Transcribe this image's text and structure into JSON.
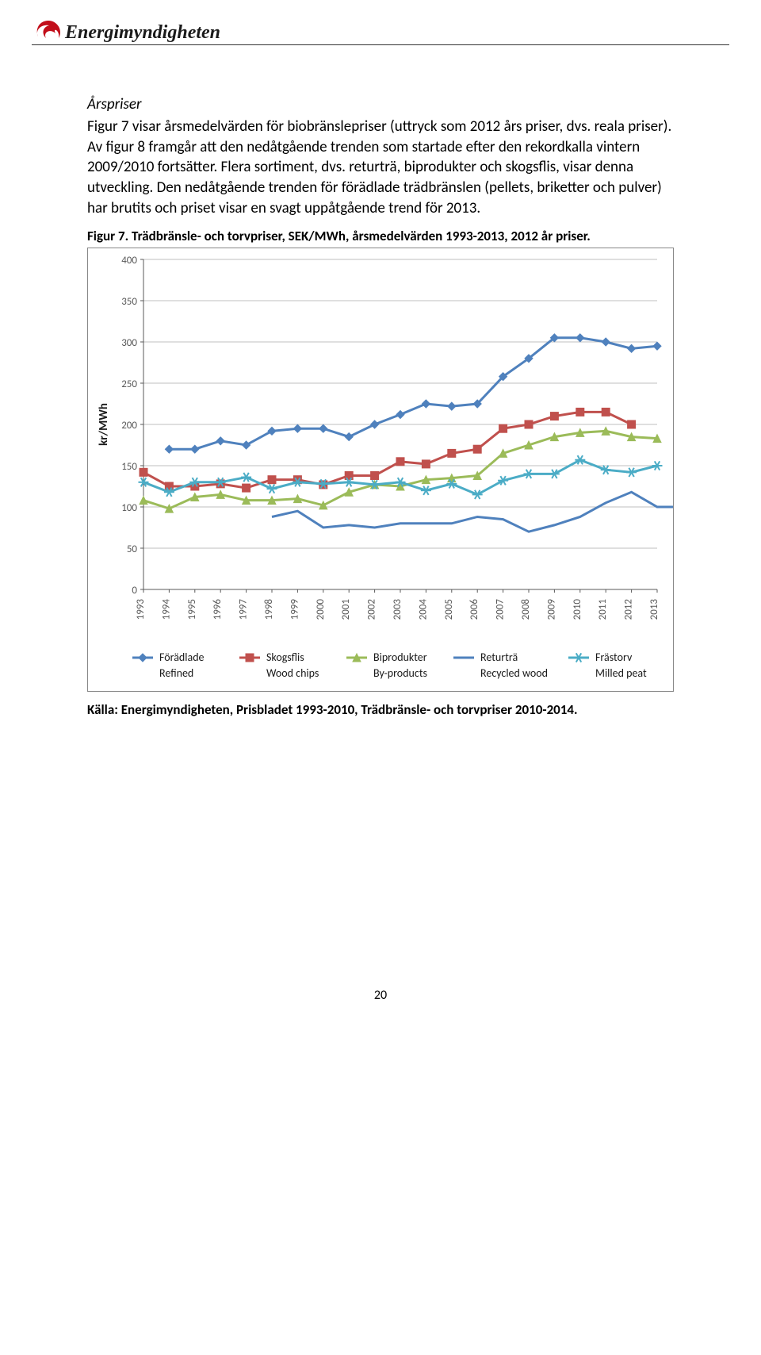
{
  "logo": {
    "text": "Energimyndigheten",
    "accent_color": "#c20e1a",
    "text_color": "#222222"
  },
  "section_heading": "Årspriser",
  "paragraph": "Figur 7 visar årsmedelvärden för biobränslepriser (uttryck som 2012 års priser, dvs. reala priser). Av figur 8 framgår att den nedåtgående trenden som startade efter den rekordkalla vintern 2009/2010 fortsätter. Flera sortiment, dvs. returträ, biprodukter och skogsflis, visar denna utveckling. Den nedåtgående trenden för förädlade trädbränslen (pellets, briketter och pulver) har brutits och priset visar en svagt uppåtgående trend för 2013.",
  "figure_caption": "Figur 7. Trädbränsle- och torvpriser, SEK/MWh, årsmedelvärden 1993-2013, 2012 år priser.",
  "source_line": "Källa: Energimyndigheten, Prisbladet 1993-2010, Trädbränsle- och torvpriser 2010-2014.",
  "page_number": "20",
  "chart": {
    "type": "line",
    "yaxis_label": "kr/MWh",
    "label_fontsize": 15,
    "tick_fontsize": 13,
    "background_color": "#ffffff",
    "border_color": "#8c8c8c",
    "grid_color": "#bfbfbf",
    "ylim": [
      0,
      400
    ],
    "ytick_step": 50,
    "categories": [
      "1993",
      "1994",
      "1995",
      "1996",
      "1997",
      "1998",
      "1999",
      "2000",
      "2001",
      "2002",
      "2003",
      "2004",
      "2005",
      "2006",
      "2007",
      "2008",
      "2009",
      "2010",
      "2011",
      "2012",
      "2013"
    ],
    "series": [
      {
        "name_sv": "Förädlade",
        "name_en": "Refined",
        "color": "#4f81bd",
        "marker": "diamond",
        "x_start": 1,
        "values": [
          170,
          170,
          180,
          175,
          192,
          195,
          195,
          185,
          200,
          212,
          225,
          222,
          225,
          258,
          280,
          305,
          305,
          300,
          292,
          295
        ]
      },
      {
        "name_sv": "Skogsflis",
        "name_en": "Wood chips",
        "color": "#c0504d",
        "marker": "square",
        "x_start": 0,
        "values": [
          142,
          125,
          125,
          128,
          123,
          133,
          133,
          127,
          138,
          138,
          155,
          152,
          165,
          170,
          195,
          200,
          210,
          215,
          215,
          200
        ]
      },
      {
        "name_sv": "Biprodukter",
        "name_en": "By-products",
        "color": "#9bbb59",
        "marker": "triangle",
        "x_start": 0,
        "values": [
          108,
          98,
          112,
          115,
          108,
          108,
          110,
          102,
          118,
          127,
          125,
          133,
          135,
          138,
          165,
          175,
          185,
          190,
          192,
          185,
          183
        ]
      },
      {
        "name_sv": "Returträ",
        "name_en": "Recycled wood",
        "color": "#4f81bd",
        "marker": "none",
        "x_start": 5,
        "values": [
          88,
          95,
          75,
          78,
          75,
          80,
          80,
          80,
          88,
          85,
          70,
          78,
          88,
          105,
          118,
          100,
          100
        ]
      },
      {
        "name_sv": "Frästorv",
        "name_en": "Milled peat",
        "color": "#4bacc6",
        "marker": "star",
        "x_start": 0,
        "values": [
          130,
          118,
          130,
          130,
          136,
          122,
          130,
          128,
          130,
          127,
          130,
          120,
          128,
          115,
          132,
          140,
          140,
          157,
          145,
          142,
          150
        ]
      }
    ]
  }
}
